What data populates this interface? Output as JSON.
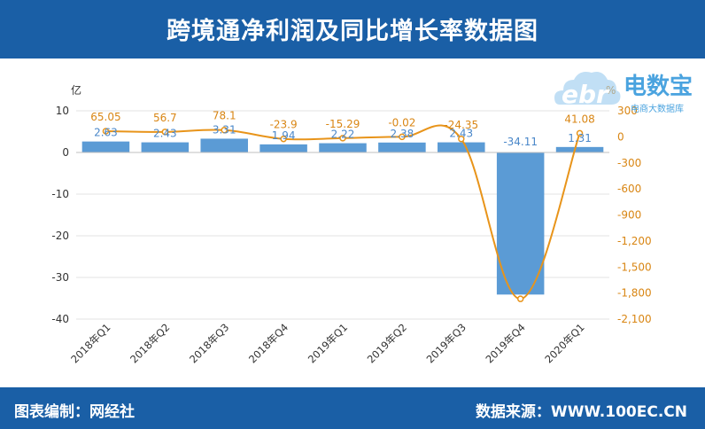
{
  "header": {
    "title": "跨境通净利润及同比增长率数据图"
  },
  "footer": {
    "left": "图表编制：网经社",
    "right": "数据来源：WWW.100EC.CN"
  },
  "logo": {
    "mark": "ebr",
    "name": "电数宝",
    "tagline": "电商大数据库"
  },
  "colors": {
    "bar": "#5b9bd5",
    "line": "#e8941a",
    "header": "#1a5fa6",
    "bar_label": "#4a87c9",
    "line_label": "#d98614"
  },
  "chart_data": {
    "type": "bar",
    "categories": [
      "2018年Q1",
      "2018年Q2",
      "2018年Q3",
      "2018年Q4",
      "2019年Q1",
      "2019年Q2",
      "2019年Q3",
      "2019年Q4",
      "2020年Q1"
    ],
    "series": [
      {
        "axis": "left",
        "kind": "bar",
        "values": [
          2.63,
          2.43,
          3.31,
          1.94,
          2.22,
          2.38,
          2.43,
          -34.11,
          1.31
        ]
      },
      {
        "axis": "right",
        "kind": "line",
        "values": [
          65.05,
          56.7,
          78.1,
          -23.9,
          -15.29,
          -0.02,
          -24.35,
          -1867,
          41.08
        ]
      }
    ],
    "line_labels": [
      "65.05",
      "56.7",
      "78.1",
      "-23.9",
      "-15.29",
      "-0.02",
      "-24.35",
      "",
      "41.08"
    ],
    "y_left": {
      "unit": "亿",
      "ylim": [
        -40,
        10
      ],
      "ticks": [
        "10",
        "0",
        "-10",
        "-20",
        "-30",
        "-40"
      ]
    },
    "y_right": {
      "unit": "%",
      "ylim": [
        -2100,
        300
      ],
      "ticks": [
        "300",
        "0",
        "-300",
        "-600",
        "-900",
        "-1,200",
        "-1,500",
        "-1,800",
        "-2,100"
      ]
    },
    "grid": true
  }
}
